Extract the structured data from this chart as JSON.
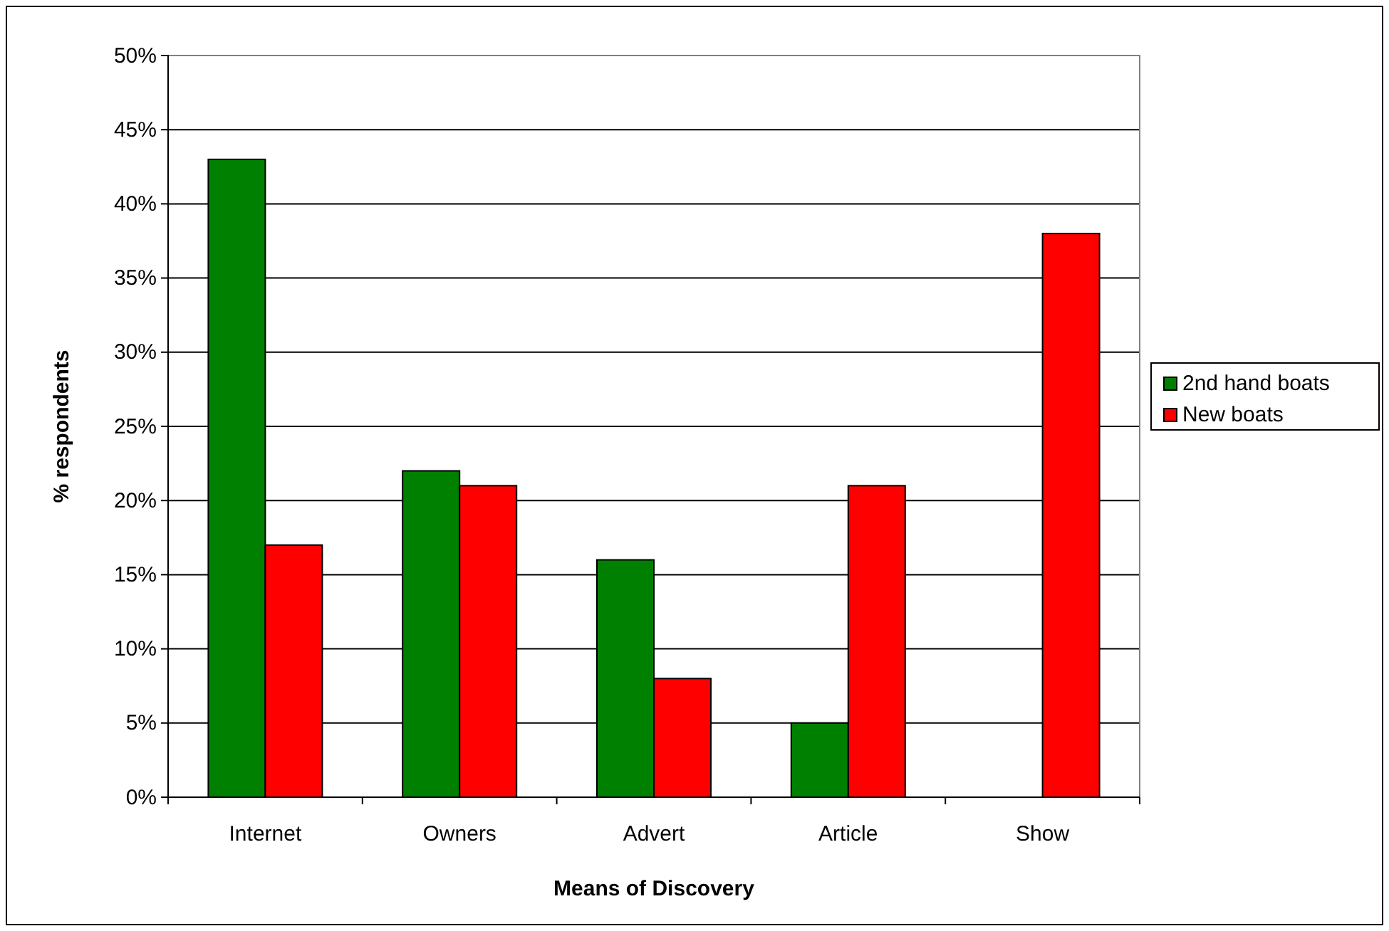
{
  "chart_data": {
    "type": "bar",
    "xlabel": "Means of Discovery",
    "ylabel": "% respondents",
    "categories": [
      "Internet",
      "Owners",
      "Advert",
      "Article",
      "Show"
    ],
    "series": [
      {
        "name": "2nd hand boats",
        "color": "#008000",
        "values": [
          43,
          22,
          16,
          5,
          null
        ]
      },
      {
        "name": "New boats",
        "color": "#ff0000",
        "values": [
          17,
          21,
          8,
          21,
          38
        ]
      }
    ],
    "ylim": [
      0,
      50
    ],
    "yticks": [
      {
        "value": 0,
        "label": "0%"
      },
      {
        "value": 5,
        "label": "5%"
      },
      {
        "value": 10,
        "label": "10%"
      },
      {
        "value": 15,
        "label": "15%"
      },
      {
        "value": 20,
        "label": "20%"
      },
      {
        "value": 25,
        "label": "25%"
      },
      {
        "value": 30,
        "label": "30%"
      },
      {
        "value": 35,
        "label": "35%"
      },
      {
        "value": 40,
        "label": "40%"
      },
      {
        "value": 45,
        "label": "45%"
      },
      {
        "value": 50,
        "label": "50%"
      }
    ],
    "grid": "y",
    "legend": "right"
  }
}
